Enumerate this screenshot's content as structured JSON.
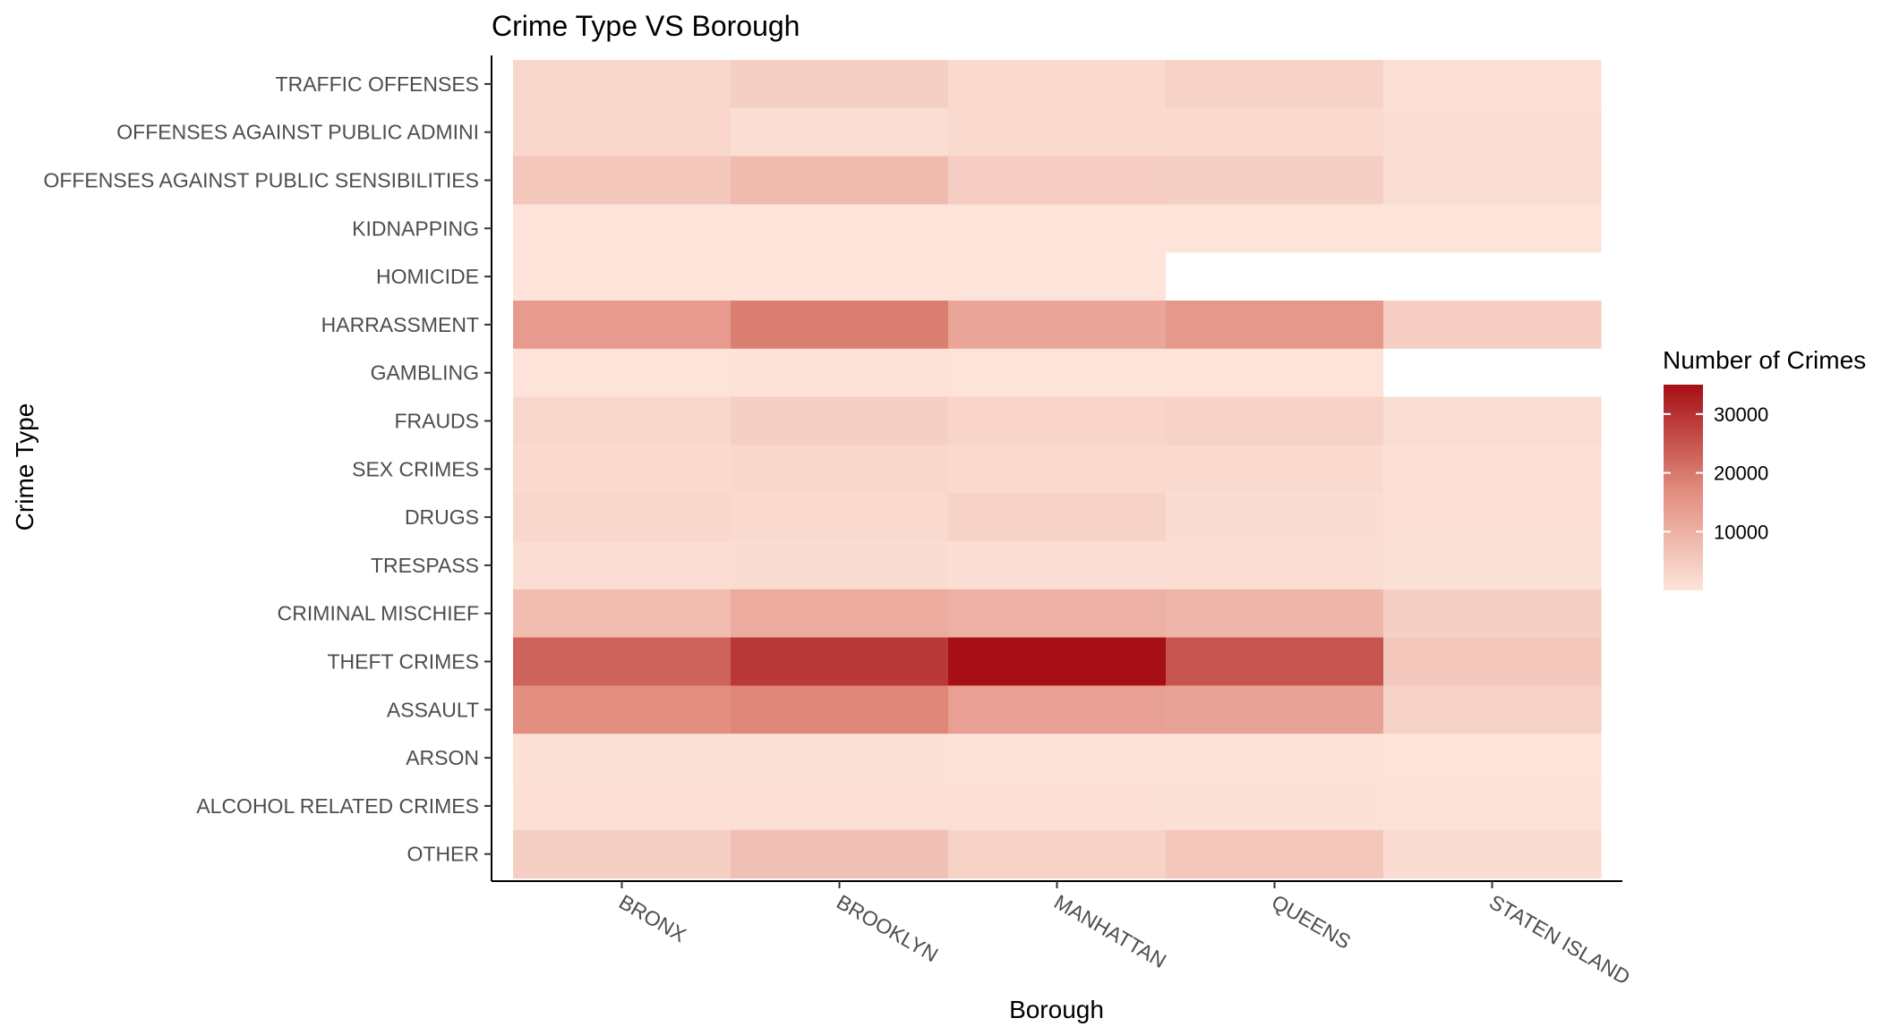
{
  "chart_data": {
    "type": "heatmap",
    "title": "Crime Type VS Borough",
    "xlabel": "Borough",
    "ylabel": "Crime Type",
    "x_categories": [
      "BRONX",
      "BROOKLYN",
      "MANHATTAN",
      "QUEENS",
      "STATEN ISLAND"
    ],
    "y_categories": [
      "TRAFFIC OFFENSES",
      "OFFENSES AGAINST PUBLIC ADMINI",
      "OFFENSES AGAINST PUBLIC SENSIBILITIES",
      "KIDNAPPING",
      "HOMICIDE",
      "HARRASSMENT",
      "GAMBLING",
      "FRAUDS",
      "SEX CRIMES",
      "DRUGS",
      "TRESPASS",
      "CRIMINAL MISCHIEF",
      "THEFT CRIMES",
      "ASSAULT",
      "ARSON",
      "ALCOHOL RELATED CRIMES",
      "OTHER"
    ],
    "values": [
      [
        2500,
        4000,
        2000,
        3500,
        800
      ],
      [
        2500,
        1200,
        2000,
        2000,
        1000
      ],
      [
        5500,
        8000,
        4500,
        4000,
        1200
      ],
      [
        150,
        250,
        120,
        150,
        40
      ],
      [
        200,
        250,
        150,
        null,
        null
      ],
      [
        14000,
        19000,
        12000,
        14500,
        4500
      ],
      [
        150,
        300,
        150,
        150,
        null
      ],
      [
        2500,
        4000,
        3000,
        3500,
        1200
      ],
      [
        2000,
        2500,
        2000,
        2000,
        700
      ],
      [
        2500,
        2000,
        3500,
        1500,
        700
      ],
      [
        1200,
        1500,
        1000,
        1200,
        500
      ],
      [
        7500,
        11000,
        10000,
        9000,
        4000
      ],
      [
        23000,
        29000,
        35000,
        25000,
        5500
      ],
      [
        16500,
        18000,
        13000,
        12500,
        3500
      ],
      [
        600,
        600,
        400,
        400,
        150
      ],
      [
        800,
        900,
        700,
        500,
        300
      ],
      [
        4000,
        7000,
        3500,
        5500,
        1500
      ]
    ],
    "missing_value_color": "#ffffff",
    "color_scale": {
      "low": "#fde4da",
      "mid": "#e0897b",
      "high": "#a50f15",
      "min": 0,
      "max": 35000
    },
    "legend": {
      "title": "Number of Crimes",
      "ticks": [
        10000,
        20000,
        30000
      ],
      "position": "right"
    },
    "x_tick_rotation": "slanted",
    "grid": false
  }
}
